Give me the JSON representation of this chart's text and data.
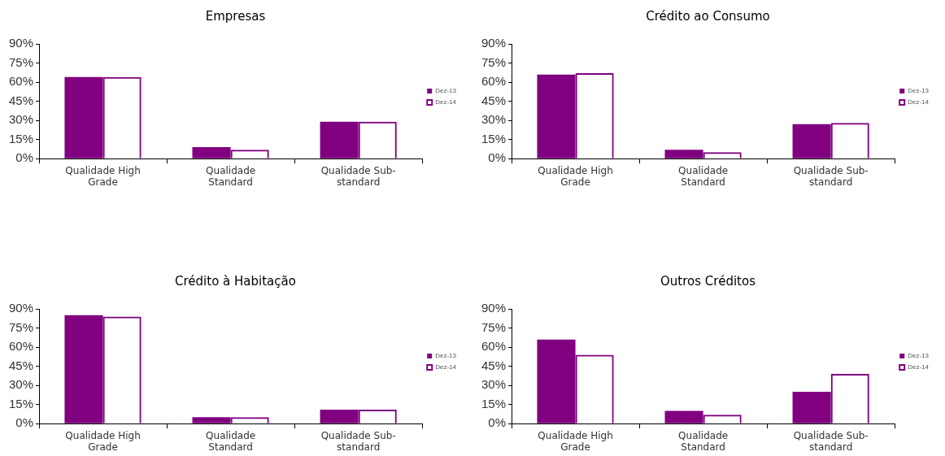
{
  "chart_data": [
    {
      "type": "bar",
      "title": "Empresas",
      "categories": [
        "Qualidade High Grade",
        "Qualidade Standard",
        "Qualidade Sub-standard"
      ],
      "series": [
        {
          "name": "Dez-13",
          "color": "#800080",
          "values": [
            64,
            9,
            29
          ]
        },
        {
          "name": "Dez-14",
          "color": "#800080",
          "values": [
            64,
            7,
            29
          ]
        }
      ],
      "ylim": [
        0,
        90
      ],
      "yticks": [
        {
          "value": 0,
          "label": "0%"
        },
        {
          "value": 15,
          "label": "15%"
        },
        {
          "value": 30,
          "label": "30%"
        },
        {
          "value": 45,
          "label": "45%"
        },
        {
          "value": 60,
          "label": "60%"
        },
        {
          "value": 75,
          "label": "75%"
        },
        {
          "value": 90,
          "label": "90%"
        }
      ],
      "grid": false,
      "legend": "right"
    },
    {
      "type": "bar",
      "title": "Crédito ao Consumo",
      "categories": [
        "Qualidade High Grade",
        "Qualidade Standard",
        "Qualidade Sub-standard"
      ],
      "series": [
        {
          "name": "Dez-13",
          "color": "#800080",
          "values": [
            66,
            7,
            27
          ]
        },
        {
          "name": "Dez-14",
          "color": "#800080",
          "values": [
            67,
            5,
            28
          ]
        }
      ],
      "ylim": [
        0,
        90
      ],
      "yticks": [
        {
          "value": 0,
          "label": "0%"
        },
        {
          "value": 15,
          "label": "15%"
        },
        {
          "value": 30,
          "label": "30%"
        },
        {
          "value": 45,
          "label": "45%"
        },
        {
          "value": 60,
          "label": "60%"
        },
        {
          "value": 75,
          "label": "75%"
        },
        {
          "value": 90,
          "label": "90%"
        }
      ],
      "grid": false,
      "legend": "right"
    },
    {
      "type": "bar",
      "title": "Crédito à Habitação",
      "categories": [
        "Qualidade High Grade",
        "Qualidade Standard",
        "Qualidade Sub-standard"
      ],
      "series": [
        {
          "name": "Dez-13",
          "color": "#800080",
          "values": [
            85,
            5,
            11
          ]
        },
        {
          "name": "Dez-14",
          "color": "#800080",
          "values": [
            84,
            5,
            11
          ]
        }
      ],
      "ylim": [
        0,
        90
      ],
      "yticks": [
        {
          "value": 0,
          "label": "0%"
        },
        {
          "value": 15,
          "label": "15%"
        },
        {
          "value": 30,
          "label": "30%"
        },
        {
          "value": 45,
          "label": "45%"
        },
        {
          "value": 60,
          "label": "60%"
        },
        {
          "value": 75,
          "label": "75%"
        },
        {
          "value": 90,
          "label": "90%"
        }
      ],
      "grid": false,
      "legend": "right"
    },
    {
      "type": "bar",
      "title": "Outros Créditos",
      "categories": [
        "Qualidade High Grade",
        "Qualidade Standard",
        "Qualidade Sub-standard"
      ],
      "series": [
        {
          "name": "Dez-13",
          "color": "#800080",
          "values": [
            66,
            10,
            25
          ]
        },
        {
          "name": "Dez-14",
          "color": "#800080",
          "values": [
            54,
            7,
            39
          ]
        }
      ],
      "ylim": [
        0,
        90
      ],
      "yticks": [
        {
          "value": 0,
          "label": "0%"
        },
        {
          "value": 15,
          "label": "15%"
        },
        {
          "value": 30,
          "label": "30%"
        },
        {
          "value": 45,
          "label": "45%"
        },
        {
          "value": 60,
          "label": "60%"
        },
        {
          "value": 75,
          "label": "75%"
        },
        {
          "value": 90,
          "label": "90%"
        }
      ],
      "grid": false,
      "legend": "right"
    }
  ]
}
